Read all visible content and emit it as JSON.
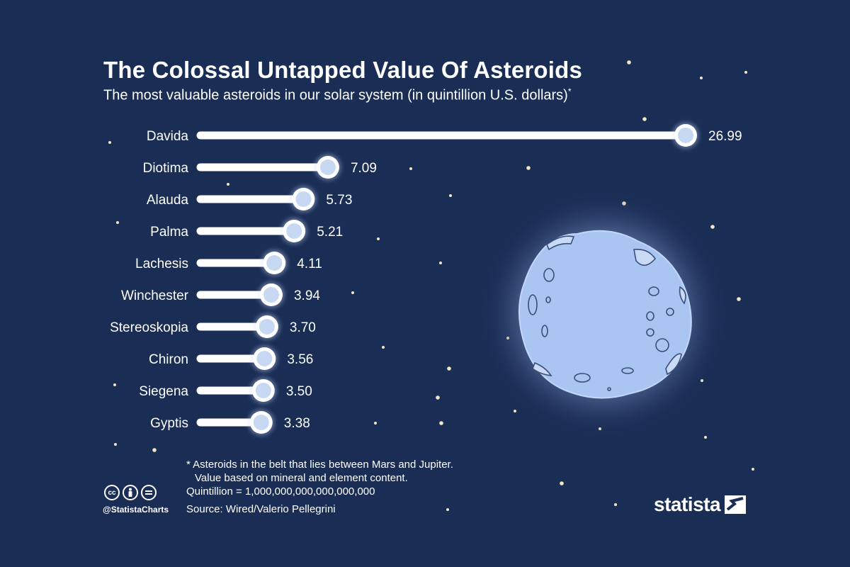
{
  "header": {
    "title": "The Colossal Untapped Value Of Asteroids",
    "subtitle": "The most valuable asteroids in our solar system (in quintillion U.S. dollars)",
    "subtitle_marker": "*"
  },
  "footnote": {
    "line1": "* Asteroids in the belt that lies between Mars and Jupiter.",
    "line2": "Value based on mineral and element content.",
    "line3": "Quintillion = 1,000,000,000,000,000,000"
  },
  "source": "Source: Wired/Valerio Pellegrini",
  "branding": {
    "handle": "@StatistaCharts",
    "logo_text": "statista",
    "license_icons": [
      "cc-icon",
      "person-icon",
      "equals-icon"
    ]
  },
  "colors": {
    "background": "#1a2d55",
    "bar": "#ffffff",
    "bar_glow": "#cfe0ff",
    "marker": "#c7d9f2",
    "asteroid": "#a9c6f3",
    "star": "#f2e6c4"
  },
  "chart_data": {
    "type": "bar",
    "orientation": "horizontal",
    "categories": [
      "Davida",
      "Diotima",
      "Alauda",
      "Palma",
      "Lachesis",
      "Winchester",
      "Stereoskopia",
      "Chiron",
      "Siegena",
      "Gyptis"
    ],
    "values": [
      26.99,
      7.09,
      5.73,
      5.21,
      4.11,
      3.94,
      3.7,
      3.56,
      3.5,
      3.38
    ],
    "value_labels": [
      "26.99",
      "7.09",
      "5.73",
      "5.21",
      "4.11",
      "3.94",
      "3.70",
      "3.56",
      "3.50",
      "3.38"
    ],
    "title": "The Colossal Untapped Value Of Asteroids",
    "xlabel": "",
    "ylabel": "",
    "grid": false,
    "legend": "none"
  }
}
